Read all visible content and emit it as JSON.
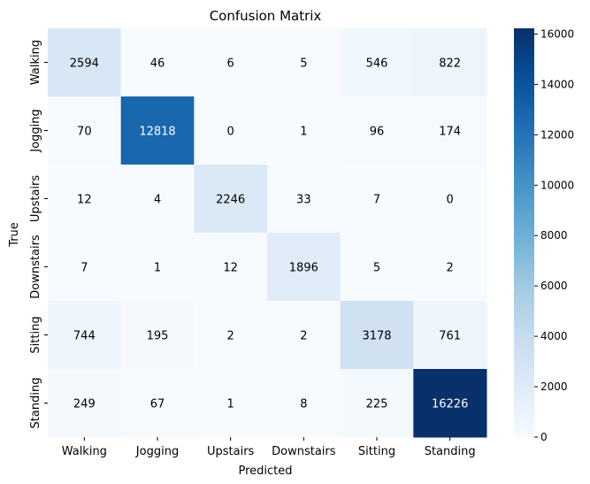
{
  "chart_data": {
    "type": "heatmap",
    "title": "Confusion Matrix",
    "xlabel": "Predicted",
    "ylabel": "True",
    "x_categories": [
      "Walking",
      "Jogging",
      "Upstairs",
      "Downstairs",
      "Sitting",
      "Standing"
    ],
    "y_categories": [
      "Walking",
      "Jogging",
      "Upstairs",
      "Downstairs",
      "Sitting",
      "Standing"
    ],
    "values": [
      [
        2594,
        46,
        6,
        5,
        546,
        822
      ],
      [
        70,
        12818,
        0,
        1,
        96,
        174
      ],
      [
        12,
        4,
        2246,
        33,
        7,
        0
      ],
      [
        7,
        1,
        12,
        1896,
        5,
        2
      ],
      [
        744,
        195,
        2,
        2,
        3178,
        761
      ],
      [
        249,
        67,
        1,
        8,
        225,
        16226
      ]
    ],
    "colormap": "Blues",
    "colorbar": {
      "min": 0,
      "max": 16226,
      "ticks": [
        0,
        2000,
        4000,
        6000,
        8000,
        10000,
        12000,
        14000,
        16000
      ]
    },
    "colors": {
      "low": "#f7fbff",
      "high": "#08306b",
      "text_dark": "#000000",
      "text_light": "#ffffff"
    }
  }
}
